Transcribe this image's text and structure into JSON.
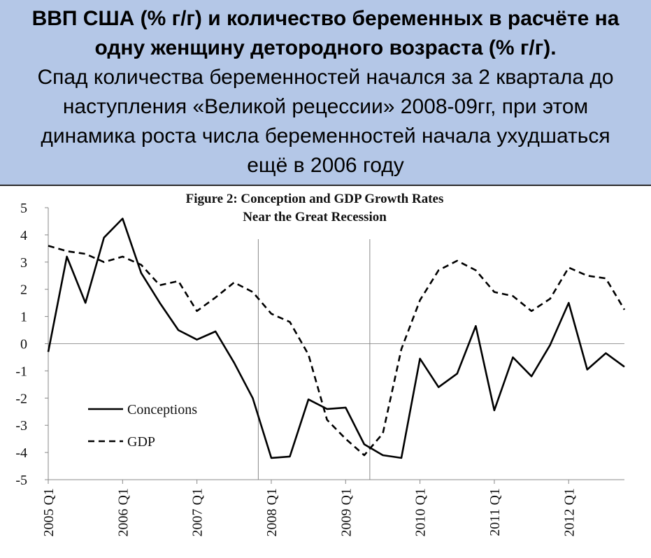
{
  "header": {
    "title_line1": "ВВП США (% г/г) и количество беременных в расчёте на",
    "title_line2": "одну женщину детородного возраста (% г/г).",
    "text_line1": "Спад количества беременностей начался за 2 квартала до",
    "text_line2": "наступления «Великой рецессии» 2008-09гг, при этом",
    "text_line3": "динамика роста числа беременностей начала ухудшаться",
    "text_line4": "ещё в 2006 году"
  },
  "chart_data": {
    "type": "line",
    "title_line1": "Figure 2: Conception and GDP Growth Rates",
    "title_line2": "Near the Great Recession",
    "x": [
      "2005 Q1",
      "2005 Q2",
      "2005 Q3",
      "2005 Q4",
      "2006 Q1",
      "2006 Q2",
      "2006 Q3",
      "2006 Q4",
      "2007 Q1",
      "2007 Q2",
      "2007 Q3",
      "2007 Q4",
      "2008 Q1",
      "2008 Q2",
      "2008 Q3",
      "2008 Q4",
      "2009 Q1",
      "2009 Q2",
      "2009 Q3",
      "2009 Q4",
      "2010 Q1",
      "2010 Q2",
      "2010 Q3",
      "2010 Q4",
      "2011 Q1",
      "2011 Q2",
      "2011 Q3",
      "2011 Q4",
      "2012 Q1",
      "2012 Q2",
      "2012 Q3",
      "2012 Q4"
    ],
    "x_tick_labels": [
      "2005 Q1",
      "2006 Q1",
      "2007 Q1",
      "2008 Q1",
      "2009 Q1",
      "2010 Q1",
      "2011 Q1",
      "2012 Q1"
    ],
    "y_ticks": [
      5,
      4,
      3,
      2,
      1,
      0,
      -1,
      -2,
      -3,
      -4,
      -5
    ],
    "ylim": [
      -5,
      5
    ],
    "series": [
      {
        "name": "Conceptions",
        "style": "solid",
        "color": "#000000",
        "values": [
          -0.3,
          3.2,
          1.5,
          3.9,
          4.6,
          2.6,
          1.5,
          0.5,
          0.15,
          0.45,
          -0.7,
          -2.0,
          -4.2,
          -4.15,
          -2.05,
          -2.4,
          -2.35,
          -3.7,
          -4.1,
          -4.2,
          -0.55,
          -1.6,
          -1.1,
          0.65,
          -2.45,
          -0.5,
          -1.2,
          -0.05,
          1.5,
          -0.95,
          -0.35,
          -0.85
        ]
      },
      {
        "name": "GDP",
        "style": "dashed",
        "color": "#000000",
        "values": [
          3.6,
          3.4,
          3.3,
          3.0,
          3.2,
          2.9,
          2.15,
          2.3,
          1.2,
          1.7,
          2.25,
          1.9,
          1.1,
          0.8,
          -0.4,
          -2.8,
          -3.5,
          -4.1,
          -3.3,
          -0.2,
          1.6,
          2.7,
          3.05,
          2.7,
          1.9,
          1.75,
          1.2,
          1.65,
          2.8,
          2.5,
          2.4,
          1.25
        ]
      }
    ],
    "vertical_markers": [
      "2007 Q4",
      "2009 Q2"
    ],
    "legend_position": "bottom-left",
    "grid": false
  }
}
